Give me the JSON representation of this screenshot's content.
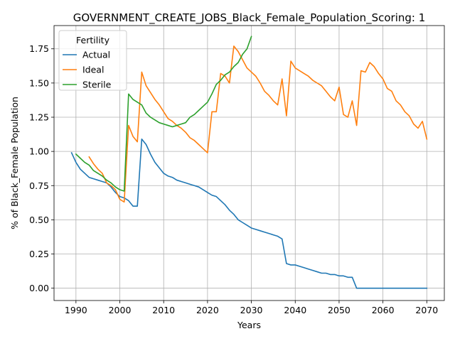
{
  "chart_data": {
    "type": "line",
    "title": "GOVERNMENT_CREATE_JOBS_Black_Female_Population_Scoring: 1",
    "xlabel": "Years",
    "ylabel": "% of Black_Female Population",
    "xlim": [
      1985,
      2074
    ],
    "ylim": [
      -0.09,
      1.92
    ],
    "xticks": [
      1990,
      2000,
      2010,
      2020,
      2030,
      2040,
      2050,
      2060,
      2070
    ],
    "yticks": [
      0.0,
      0.25,
      0.5,
      0.75,
      1.0,
      1.25,
      1.5,
      1.75
    ],
    "ytick_labels": [
      "0.00",
      "0.25",
      "0.50",
      "0.75",
      "1.00",
      "1.25",
      "1.50",
      "1.75"
    ],
    "grid": true,
    "legend": {
      "title": "Fertility",
      "placement": "top-left"
    },
    "series": [
      {
        "name": "Actual",
        "color": "#1f77b4",
        "points": [
          [
            1989,
            0.99
          ],
          [
            1990,
            0.92
          ],
          [
            1991,
            0.87
          ],
          [
            1992,
            0.84
          ],
          [
            1993,
            0.81
          ],
          [
            1994,
            0.8
          ],
          [
            1995,
            0.79
          ],
          [
            1996,
            0.78
          ],
          [
            1997,
            0.77
          ],
          [
            1998,
            0.74
          ],
          [
            1999,
            0.7
          ],
          [
            2000,
            0.67
          ],
          [
            2001,
            0.66
          ],
          [
            2002,
            0.64
          ],
          [
            2003,
            0.6
          ],
          [
            2004,
            0.6
          ],
          [
            2005,
            1.09
          ],
          [
            2006,
            1.05
          ],
          [
            2007,
            0.98
          ],
          [
            2008,
            0.92
          ],
          [
            2009,
            0.88
          ],
          [
            2010,
            0.84
          ],
          [
            2011,
            0.82
          ],
          [
            2012,
            0.81
          ],
          [
            2013,
            0.79
          ],
          [
            2014,
            0.78
          ],
          [
            2015,
            0.77
          ],
          [
            2016,
            0.76
          ],
          [
            2017,
            0.75
          ],
          [
            2018,
            0.74
          ],
          [
            2019,
            0.72
          ],
          [
            2020,
            0.7
          ],
          [
            2021,
            0.68
          ],
          [
            2022,
            0.67
          ],
          [
            2023,
            0.64
          ],
          [
            2024,
            0.61
          ],
          [
            2025,
            0.57
          ],
          [
            2026,
            0.54
          ],
          [
            2027,
            0.5
          ],
          [
            2028,
            0.48
          ],
          [
            2029,
            0.46
          ],
          [
            2030,
            0.44
          ],
          [
            2031,
            0.43
          ],
          [
            2032,
            0.42
          ],
          [
            2033,
            0.41
          ],
          [
            2034,
            0.4
          ],
          [
            2035,
            0.39
          ],
          [
            2036,
            0.38
          ],
          [
            2037,
            0.36
          ],
          [
            2038,
            0.18
          ],
          [
            2039,
            0.17
          ],
          [
            2040,
            0.17
          ],
          [
            2041,
            0.16
          ],
          [
            2042,
            0.15
          ],
          [
            2043,
            0.14
          ],
          [
            2044,
            0.13
          ],
          [
            2045,
            0.12
          ],
          [
            2046,
            0.11
          ],
          [
            2047,
            0.11
          ],
          [
            2048,
            0.1
          ],
          [
            2049,
            0.1
          ],
          [
            2050,
            0.09
          ],
          [
            2051,
            0.09
          ],
          [
            2052,
            0.08
          ],
          [
            2053,
            0.08
          ],
          [
            2054,
            0.0
          ],
          [
            2055,
            0.0
          ],
          [
            2060,
            0.0
          ],
          [
            2065,
            0.0
          ],
          [
            2070,
            0.0
          ]
        ]
      },
      {
        "name": "Ideal",
        "color": "#ff7f0e",
        "points": [
          [
            1993,
            0.96
          ],
          [
            1994,
            0.91
          ],
          [
            1995,
            0.87
          ],
          [
            1996,
            0.84
          ],
          [
            1997,
            0.77
          ],
          [
            1998,
            0.75
          ],
          [
            1999,
            0.72
          ],
          [
            2000,
            0.65
          ],
          [
            2001,
            0.63
          ],
          [
            2002,
            1.19
          ],
          [
            2003,
            1.11
          ],
          [
            2004,
            1.07
          ],
          [
            2005,
            1.58
          ],
          [
            2006,
            1.48
          ],
          [
            2007,
            1.43
          ],
          [
            2008,
            1.38
          ],
          [
            2009,
            1.34
          ],
          [
            2010,
            1.29
          ],
          [
            2011,
            1.24
          ],
          [
            2012,
            1.22
          ],
          [
            2013,
            1.19
          ],
          [
            2014,
            1.17
          ],
          [
            2015,
            1.14
          ],
          [
            2016,
            1.1
          ],
          [
            2017,
            1.08
          ],
          [
            2018,
            1.05
          ],
          [
            2019,
            1.02
          ],
          [
            2020,
            0.99
          ],
          [
            2021,
            1.29
          ],
          [
            2022,
            1.29
          ],
          [
            2023,
            1.57
          ],
          [
            2024,
            1.55
          ],
          [
            2025,
            1.5
          ],
          [
            2026,
            1.77
          ],
          [
            2027,
            1.73
          ],
          [
            2028,
            1.67
          ],
          [
            2029,
            1.61
          ],
          [
            2030,
            1.58
          ],
          [
            2031,
            1.55
          ],
          [
            2032,
            1.5
          ],
          [
            2033,
            1.44
          ],
          [
            2034,
            1.41
          ],
          [
            2035,
            1.37
          ],
          [
            2036,
            1.34
          ],
          [
            2037,
            1.53
          ],
          [
            2038,
            1.26
          ],
          [
            2039,
            1.66
          ],
          [
            2040,
            1.61
          ],
          [
            2041,
            1.59
          ],
          [
            2042,
            1.57
          ],
          [
            2043,
            1.55
          ],
          [
            2044,
            1.52
          ],
          [
            2045,
            1.5
          ],
          [
            2046,
            1.48
          ],
          [
            2047,
            1.44
          ],
          [
            2048,
            1.4
          ],
          [
            2049,
            1.37
          ],
          [
            2050,
            1.47
          ],
          [
            2051,
            1.27
          ],
          [
            2052,
            1.25
          ],
          [
            2053,
            1.37
          ],
          [
            2054,
            1.19
          ],
          [
            2055,
            1.59
          ],
          [
            2056,
            1.58
          ],
          [
            2057,
            1.65
          ],
          [
            2058,
            1.62
          ],
          [
            2059,
            1.57
          ],
          [
            2060,
            1.53
          ],
          [
            2061,
            1.46
          ],
          [
            2062,
            1.44
          ],
          [
            2063,
            1.37
          ],
          [
            2064,
            1.34
          ],
          [
            2065,
            1.29
          ],
          [
            2066,
            1.26
          ],
          [
            2067,
            1.2
          ],
          [
            2068,
            1.17
          ],
          [
            2069,
            1.22
          ],
          [
            2070,
            1.09
          ]
        ]
      },
      {
        "name": "Sterile",
        "color": "#2ca02c",
        "points": [
          [
            1990,
            0.98
          ],
          [
            1991,
            0.95
          ],
          [
            1992,
            0.92
          ],
          [
            1993,
            0.9
          ],
          [
            1994,
            0.86
          ],
          [
            1995,
            0.84
          ],
          [
            1996,
            0.82
          ],
          [
            1997,
            0.79
          ],
          [
            1998,
            0.77
          ],
          [
            1999,
            0.74
          ],
          [
            2000,
            0.72
          ],
          [
            2001,
            0.71
          ],
          [
            2002,
            1.42
          ],
          [
            2003,
            1.38
          ],
          [
            2004,
            1.36
          ],
          [
            2005,
            1.34
          ],
          [
            2006,
            1.28
          ],
          [
            2007,
            1.25
          ],
          [
            2008,
            1.23
          ],
          [
            2009,
            1.21
          ],
          [
            2010,
            1.2
          ],
          [
            2011,
            1.19
          ],
          [
            2012,
            1.18
          ],
          [
            2013,
            1.19
          ],
          [
            2014,
            1.2
          ],
          [
            2015,
            1.21
          ],
          [
            2016,
            1.25
          ],
          [
            2017,
            1.27
          ],
          [
            2018,
            1.3
          ],
          [
            2019,
            1.33
          ],
          [
            2020,
            1.36
          ],
          [
            2021,
            1.42
          ],
          [
            2022,
            1.49
          ],
          [
            2023,
            1.52
          ],
          [
            2024,
            1.56
          ],
          [
            2025,
            1.58
          ],
          [
            2026,
            1.62
          ],
          [
            2027,
            1.65
          ],
          [
            2028,
            1.71
          ],
          [
            2029,
            1.75
          ],
          [
            2030,
            1.84
          ]
        ]
      }
    ]
  }
}
